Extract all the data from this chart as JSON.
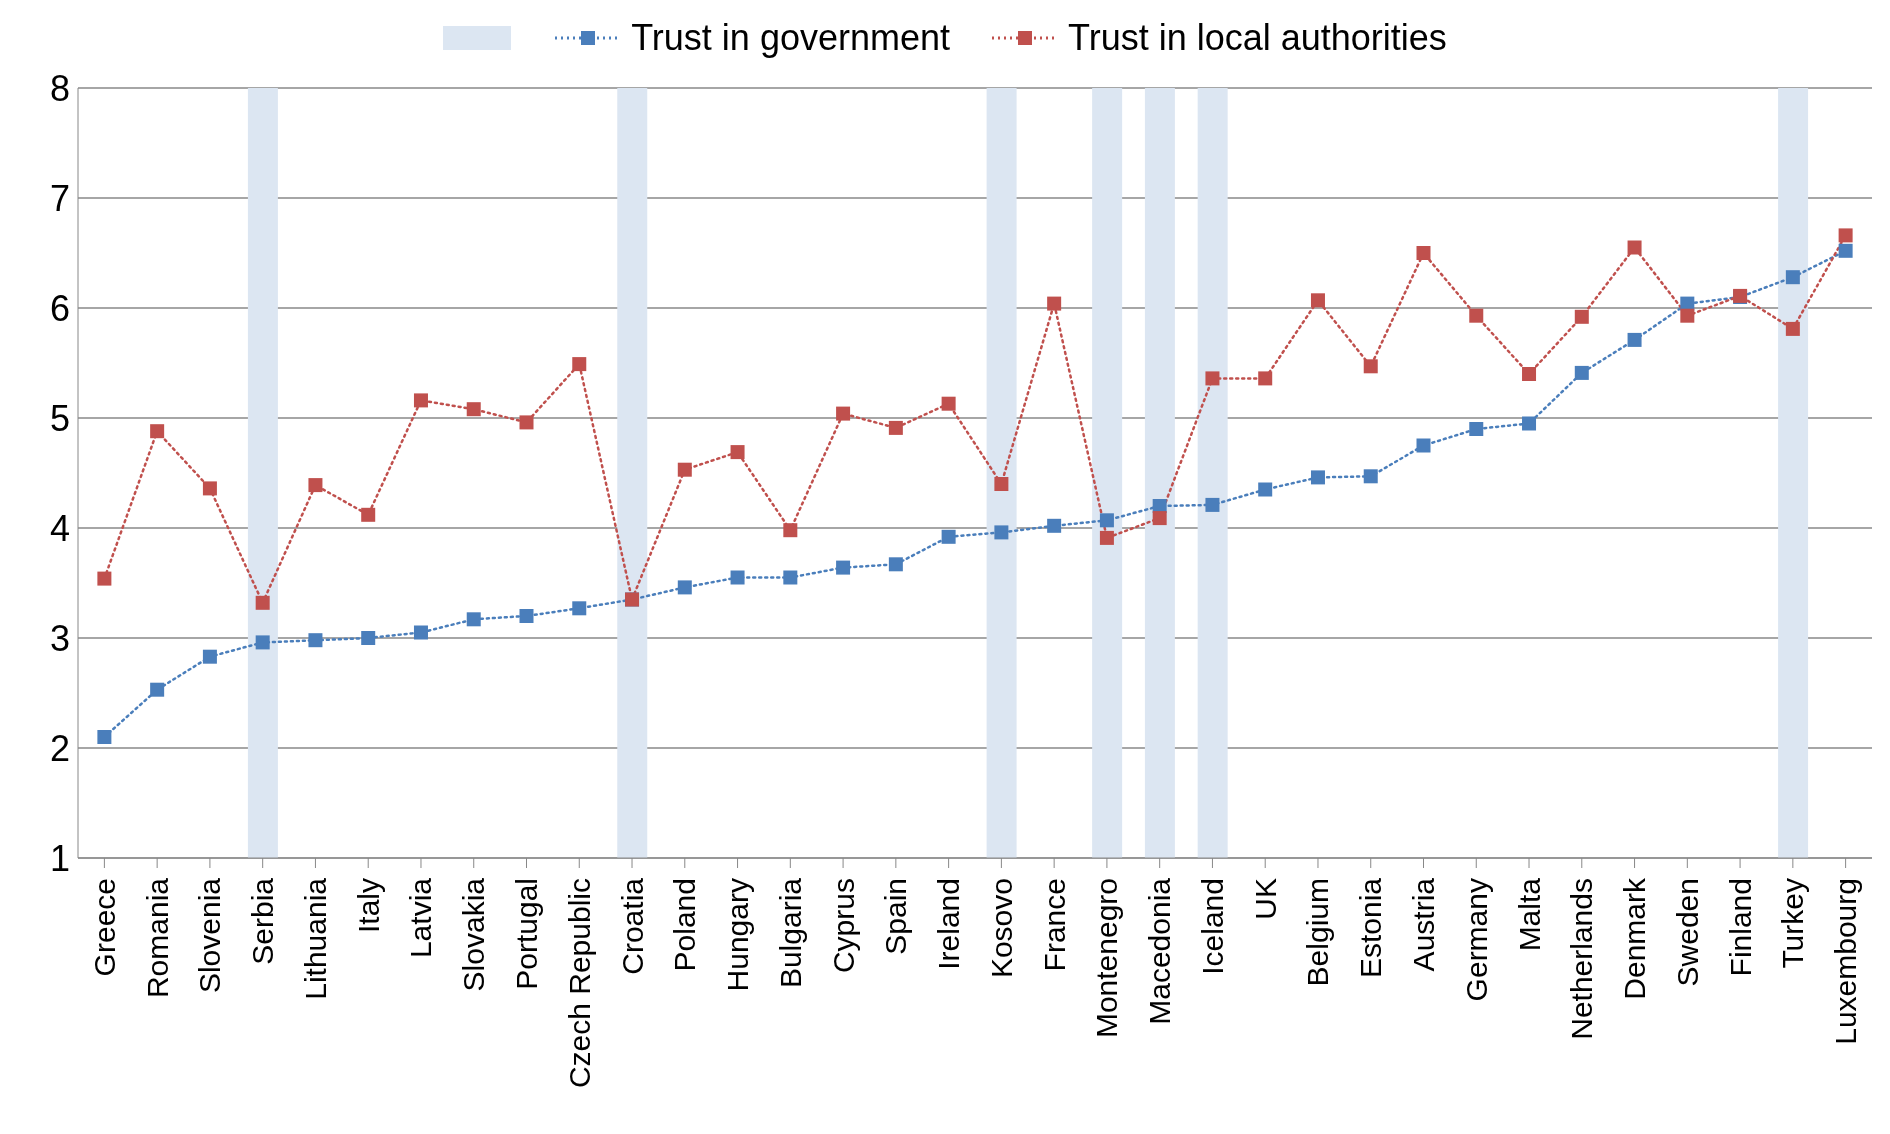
{
  "chart_data": {
    "type": "line",
    "categories": [
      "Greece",
      "Romania",
      "Slovenia",
      "Serbia",
      "Lithuania",
      "Italy",
      "Latvia",
      "Slovakia",
      "Portugal",
      "Czech Republic",
      "Croatia",
      "Poland",
      "Hungary",
      "Bulgaria",
      "Cyprus",
      "Spain",
      "Ireland",
      "Kosovo",
      "France",
      "Montenegro",
      "Macedonia",
      "Iceland",
      "UK",
      "Belgium",
      "Estonia",
      "Austria",
      "Germany",
      "Malta",
      "Netherlands",
      "Denmark",
      "Sweden",
      "Finland",
      "Turkey",
      "Luxembourg"
    ],
    "series": [
      {
        "type": "bar",
        "color": "#dce6f2",
        "values": [
          null,
          null,
          null,
          8,
          null,
          null,
          null,
          null,
          null,
          null,
          8,
          null,
          null,
          null,
          null,
          null,
          null,
          8,
          null,
          8,
          8,
          8,
          null,
          null,
          null,
          null,
          null,
          null,
          null,
          null,
          null,
          null,
          8,
          null
        ]
      },
      {
        "name": "Trust in government",
        "color": "#4a7ebb",
        "values": [
          2.1,
          2.53,
          2.83,
          2.96,
          2.98,
          3.0,
          3.05,
          3.17,
          3.2,
          3.27,
          3.35,
          3.46,
          3.55,
          3.55,
          3.64,
          3.67,
          3.92,
          3.96,
          4.02,
          4.07,
          4.2,
          4.21,
          4.35,
          4.46,
          4.47,
          4.75,
          4.9,
          4.95,
          5.41,
          5.71,
          6.04,
          6.1,
          6.28,
          6.52
        ]
      },
      {
        "name": "Trust in local authorities",
        "color": "#c0504d",
        "values": [
          3.54,
          4.88,
          4.36,
          3.32,
          4.39,
          4.12,
          5.16,
          5.08,
          4.96,
          5.49,
          3.35,
          4.53,
          4.69,
          3.98,
          5.04,
          4.91,
          5.13,
          4.4,
          6.04,
          3.91,
          4.09,
          5.36,
          5.36,
          6.07,
          5.47,
          6.5,
          5.93,
          5.4,
          5.92,
          6.55,
          5.93,
          6.11,
          5.81,
          6.66
        ]
      }
    ],
    "ylim": [
      1,
      8
    ],
    "yticks": [
      1,
      2,
      3,
      4,
      5,
      6,
      7,
      8
    ],
    "grid": "y",
    "legend": "top",
    "marker": "square",
    "line_style": "dotted"
  }
}
